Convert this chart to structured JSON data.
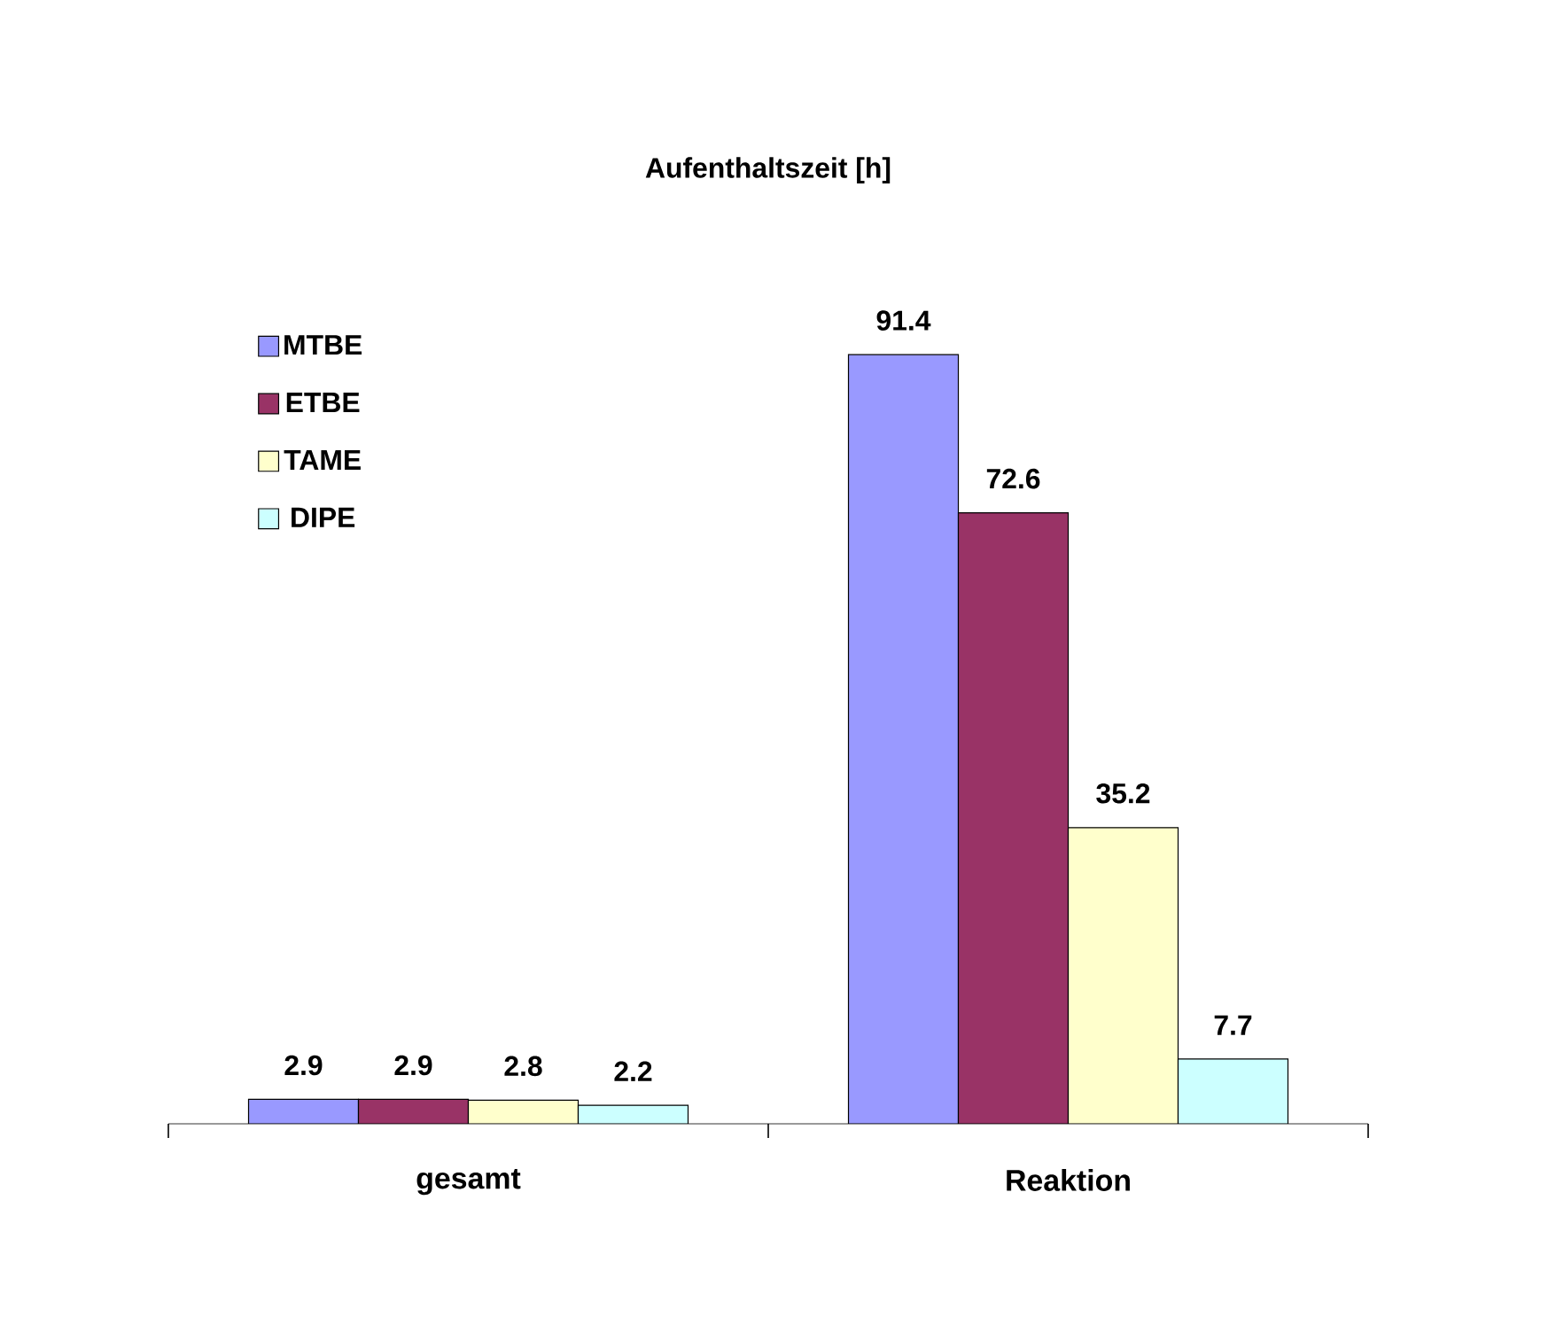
{
  "chart_data": {
    "type": "bar",
    "title": "Aufenthaltszeit [h]",
    "categories": [
      "gesamt",
      "Reaktion"
    ],
    "series": [
      {
        "name": "MTBE",
        "color": "#9999ff",
        "values": [
          2.9,
          91.4
        ]
      },
      {
        "name": "ETBE",
        "color": "#993366",
        "values": [
          2.9,
          72.6
        ]
      },
      {
        "name": "TAME",
        "color": "#ffffcc",
        "values": [
          2.8,
          35.2
        ]
      },
      {
        "name": "DIPE",
        "color": "#ccffff",
        "values": [
          2.2,
          7.7
        ]
      }
    ],
    "data_labels": true,
    "legend": "top left"
  }
}
